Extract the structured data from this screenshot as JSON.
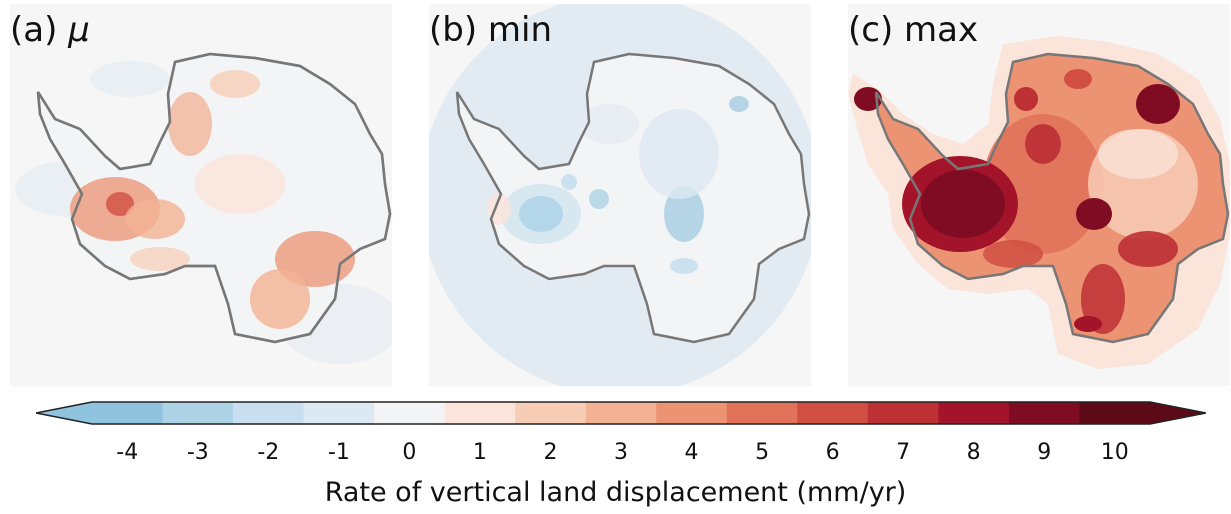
{
  "panels": [
    {
      "prefix": "(a) ",
      "symbol": "μ",
      "suffix": ""
    },
    {
      "prefix": "(b) min",
      "symbol": "",
      "suffix": ""
    },
    {
      "prefix": "(c) max",
      "symbol": "",
      "suffix": ""
    }
  ],
  "colorbar": {
    "ticks": [
      "-4",
      "-3",
      "-2",
      "-1",
      "0",
      "1",
      "2",
      "3",
      "4",
      "5",
      "6",
      "7",
      "8",
      "9",
      "10"
    ],
    "label": "Rate of vertical land displacement (mm/yr)",
    "colors": [
      "#8fc3de",
      "#aed2e6",
      "#c7dfee",
      "#dde9f2",
      "#f3f4f5",
      "#fbe4d9",
      "#f8cdb6",
      "#f3b294",
      "#ec9373",
      "#e17158",
      "#d14f42",
      "#bd3034",
      "#a3142b",
      "#7f0c22",
      "#5c0a17"
    ],
    "under_color": "#8fc3de",
    "over_color": "#5c0a17"
  }
}
